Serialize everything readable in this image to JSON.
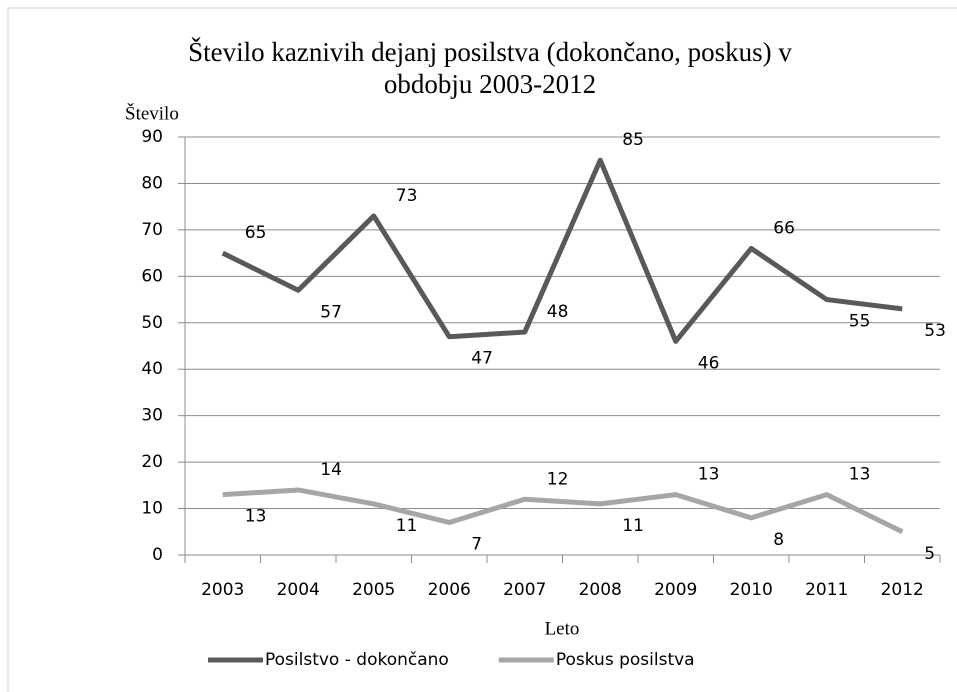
{
  "chart_data": {
    "type": "line",
    "title": "Število kaznivih dejanj posilstva (dokončano, poskus) v obdobju 2003-2012",
    "y_label": "Število",
    "x_label": "Leto",
    "categories": [
      "2003",
      "2004",
      "2005",
      "2006",
      "2007",
      "2008",
      "2009",
      "2010",
      "2011",
      "2012"
    ],
    "series": [
      {
        "name": "Posilstvo - dokončano",
        "color": "#595959",
        "values": [
          65,
          57,
          73,
          47,
          48,
          85,
          46,
          66,
          55,
          53
        ]
      },
      {
        "name": "Poskus posilstva",
        "color": "#a6a6a6",
        "values": [
          13,
          14,
          11,
          7,
          12,
          11,
          13,
          8,
          13,
          5
        ]
      }
    ],
    "ylim": [
      0,
      90
    ],
    "yticks": [
      0,
      10,
      20,
      30,
      40,
      50,
      60,
      70,
      80,
      90
    ],
    "grid": true,
    "legend": "bottom"
  }
}
